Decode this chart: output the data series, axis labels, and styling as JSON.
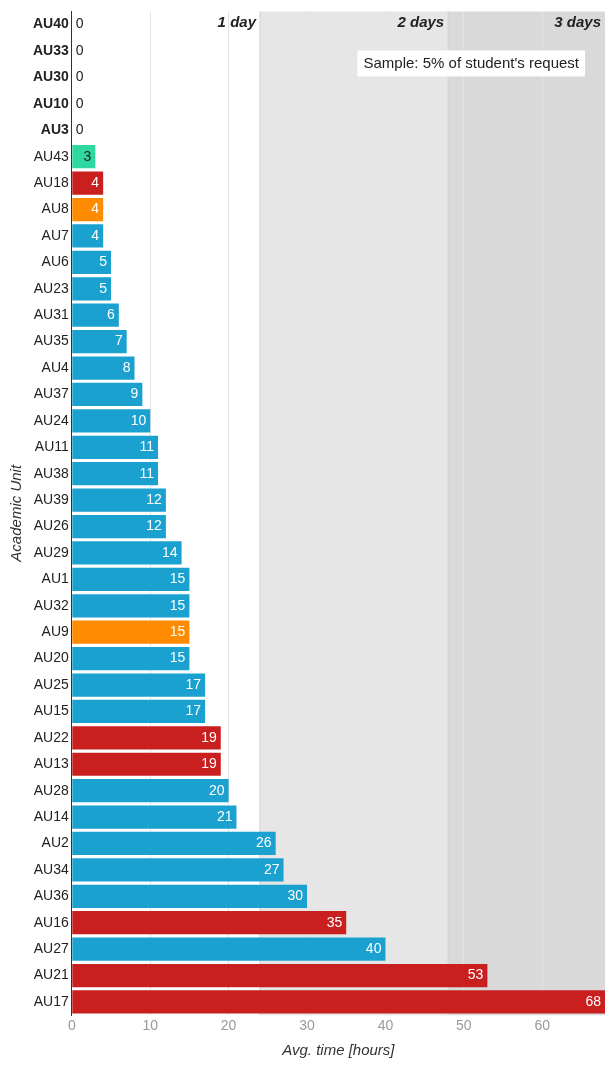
{
  "chart_data": {
    "type": "bar",
    "orientation": "horizontal",
    "xlabel": "Avg. time [hours]",
    "ylabel": "Academic Unit",
    "categories": [
      "AU40",
      "AU33",
      "AU30",
      "AU10",
      "AU3",
      "AU43",
      "AU18",
      "AU8",
      "AU7",
      "AU6",
      "AU23",
      "AU31",
      "AU35",
      "AU4",
      "AU37",
      "AU24",
      "AU11",
      "AU38",
      "AU39",
      "AU26",
      "AU29",
      "AU1",
      "AU32",
      "AU9",
      "AU20",
      "AU25",
      "AU15",
      "AU22",
      "AU13",
      "AU28",
      "AU14",
      "AU2",
      "AU34",
      "AU36",
      "AU16",
      "AU27",
      "AU21",
      "AU17"
    ],
    "values": [
      0,
      0,
      0,
      0,
      0,
      3,
      4,
      4,
      4,
      5,
      5,
      6,
      7,
      8,
      9,
      10,
      11,
      11,
      12,
      12,
      14,
      15,
      15,
      15,
      15,
      17,
      17,
      19,
      19,
      20,
      21,
      26,
      27,
      30,
      35,
      40,
      53,
      68
    ],
    "colors": [
      "#1ba1cf",
      "#1ba1cf",
      "#1ba1cf",
      "#1ba1cf",
      "#1ba1cf",
      "#2ed8a0",
      "#c91f1f",
      "#ff8c00",
      "#1ba1cf",
      "#1ba1cf",
      "#1ba1cf",
      "#1ba1cf",
      "#1ba1cf",
      "#1ba1cf",
      "#1ba1cf",
      "#1ba1cf",
      "#1ba1cf",
      "#1ba1cf",
      "#1ba1cf",
      "#1ba1cf",
      "#1ba1cf",
      "#1ba1cf",
      "#1ba1cf",
      "#ff8c00",
      "#1ba1cf",
      "#1ba1cf",
      "#1ba1cf",
      "#c91f1f",
      "#c91f1f",
      "#1ba1cf",
      "#1ba1cf",
      "#1ba1cf",
      "#1ba1cf",
      "#1ba1cf",
      "#c91f1f",
      "#1ba1cf",
      "#c91f1f",
      "#c91f1f"
    ],
    "data_labels": true,
    "xlim": [
      0,
      68
    ],
    "xticks": [
      0,
      10,
      20,
      30,
      40,
      50,
      60
    ],
    "grid": "x",
    "bands": [
      {
        "axis": "x",
        "from": 24,
        "to": 48,
        "color": "#e6e6e6"
      },
      {
        "axis": "x",
        "from": 48,
        "to": 68,
        "color": "#d9d9d9",
        "label": "3 days"
      }
    ],
    "ref_lines": [
      {
        "axis": "x",
        "value": 24,
        "label": "1 day",
        "color": "#d0d0d0"
      },
      {
        "axis": "x",
        "value": 48,
        "label": "2 days",
        "color": "#cfcfcf"
      }
    ],
    "annotations": [
      "Sample: 5% of student's request"
    ]
  }
}
